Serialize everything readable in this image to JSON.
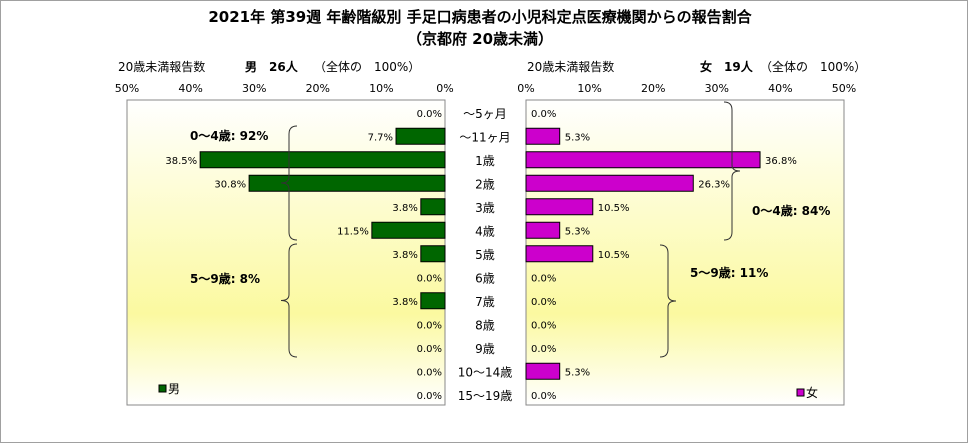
{
  "chart_data": {
    "type": "bar",
    "title": "2021年 第39週 年齢階級別 手足口病患者の小児科定点医療機関からの報告割合",
    "subtitle": "（京都府 20歳未満）",
    "categories": [
      "～5ヶ月",
      "～11ヶ月",
      "1歳",
      "2歳",
      "3歳",
      "4歳",
      "5歳",
      "6歳",
      "7歳",
      "8歳",
      "9歳",
      "10～14歳",
      "15～19歳"
    ],
    "tick_labels": [
      "50%",
      "40%",
      "30%",
      "20%",
      "10%",
      "0%"
    ],
    "tick_labels_right": [
      "0%",
      "10%",
      "20%",
      "30%",
      "40%",
      "50%"
    ],
    "xlim": [
      0,
      50
    ],
    "grid": false,
    "male": {
      "header_left": "20歳未満報告数",
      "header_name": "男　26人",
      "header_total": "（全体の　100%）",
      "legend": "男",
      "color": "#006600",
      "values": [
        0.0,
        7.7,
        38.5,
        30.8,
        3.8,
        11.5,
        3.8,
        0.0,
        3.8,
        0.0,
        0.0,
        0.0,
        0.0
      ],
      "value_labels": [
        "0.0%",
        "7.7%",
        "38.5%",
        "30.8%",
        "3.8%",
        "11.5%",
        "3.8%",
        "0.0%",
        "3.8%",
        "0.0%",
        "0.0%",
        "0.0%",
        "0.0%"
      ],
      "group_a_label": "0～4歳: 92%",
      "group_b_label": "5～9歳: 8%"
    },
    "female": {
      "header_left": "20歳未満報告数",
      "header_name": "女　19人",
      "header_total": "（全体の　100%）",
      "legend": "女",
      "color": "#cc00cc",
      "values": [
        0.0,
        5.3,
        36.8,
        26.3,
        10.5,
        5.3,
        10.5,
        0.0,
        0.0,
        0.0,
        0.0,
        5.3,
        0.0
      ],
      "value_labels": [
        "0.0%",
        "5.3%",
        "36.8%",
        "26.3%",
        "10.5%",
        "5.3%",
        "10.5%",
        "0.0%",
        "0.0%",
        "0.0%",
        "0.0%",
        "5.3%",
        "0.0%"
      ],
      "group_a_label": "0～4歳: 84%",
      "group_b_label": "5～9歳: 11%"
    }
  }
}
